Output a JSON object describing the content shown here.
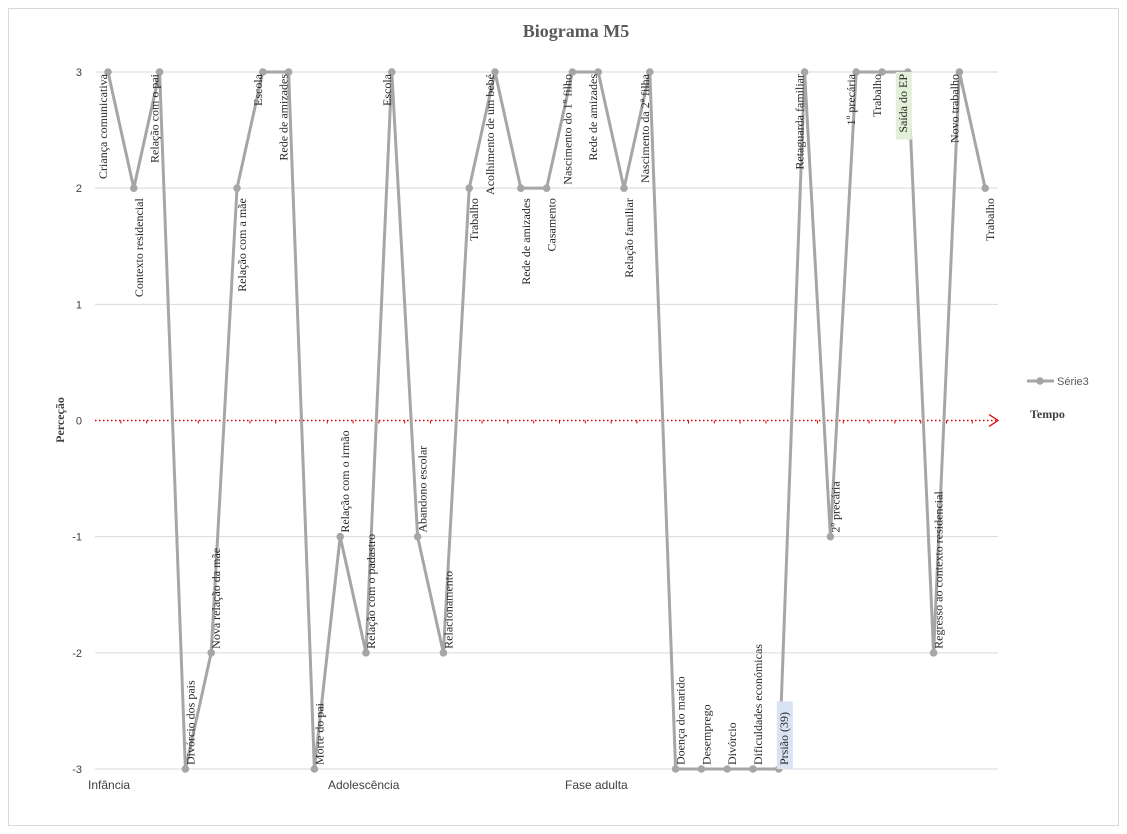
{
  "chart_data": {
    "type": "line",
    "title": "Biograma M5",
    "ylabel": "Perceção",
    "xlabel": "",
    "time_label": "Tempo",
    "ylim": [
      -3,
      3
    ],
    "yticks": [
      3,
      2,
      1,
      0,
      -1,
      -2,
      -3
    ],
    "grid": true,
    "legend_position": "right",
    "phases": [
      "Infância",
      "Adolescência",
      "Fase adulta"
    ],
    "series": [
      {
        "name": "Série3",
        "color": "#a6a6a6",
        "values": [
          3,
          2,
          3,
          -3,
          -2,
          2,
          3,
          3,
          -3,
          -1,
          -2,
          3,
          -1,
          -2,
          2,
          3,
          2,
          2,
          3,
          3,
          2,
          3,
          -3,
          -3,
          -3,
          -3,
          -3,
          3,
          -1,
          3,
          3,
          3,
          -2,
          3,
          2
        ],
        "labels": [
          "Criança comunicativa",
          "Contexto residencial",
          "Relação com o pai",
          "Divórcio dos pais",
          "Nova relação da mãe",
          "Relação com a mãe",
          "Escola",
          "Rede de amizades",
          "Morte do pai",
          "Relação com o irmão",
          "Relação com o padastro",
          "Escola",
          "Abandono escolar",
          "Relacionamento",
          "Trabalho",
          "Acolhimento de um bebé",
          "Rede de amizades",
          "Casamento",
          "Nascimento do 1º filho",
          "Rede de amizades",
          "Relação familiar",
          "Nascimento da 2ª filha",
          "Doença do marido",
          "Desemprego",
          "Divórcio",
          "Dificuldades económicas",
          "Prsião (39)",
          "Retaguarda familiar",
          "2º precária",
          "1º precária",
          "Trabalho",
          "Saída do EP",
          "Regresso ao contexto residencial",
          "Novo trabalho",
          "Trabalho"
        ],
        "highlights": {
          "22": {
            "color": "#c00000"
          },
          "26": {
            "background": "#dae3f3"
          },
          "31": {
            "background": "#e2efd9"
          }
        }
      }
    ]
  }
}
